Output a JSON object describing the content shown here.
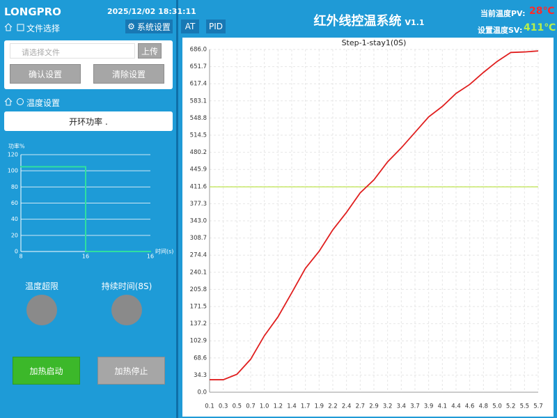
{
  "header": {
    "brand": "LONGPRO",
    "datetime": "2025/12/02 18:31:11"
  },
  "left": {
    "file_nav": "文件选择",
    "settings_btn": "系统设置",
    "file_placeholder": "请选择文件",
    "upload_btn": "上传",
    "confirm_btn": "确认设置",
    "clear_btn": "清除设置",
    "temp_nav": "温度设置",
    "mode": "开环功率 .",
    "indicators": [
      {
        "label": "温度超限"
      },
      {
        "label": "持续时间(8S)"
      }
    ],
    "start_btn": "加热启动",
    "stop_btn": "加热停止"
  },
  "right": {
    "at_btn": "AT",
    "pid_btn": "PID",
    "title": "红外线控温系统",
    "version": "V1.1",
    "pv_label": "当前温度PV:",
    "pv_value": "28℃",
    "sv_label": "设置温度SV:",
    "sv_value": "411℃"
  },
  "chart_data": [
    {
      "type": "step",
      "y_label": "功率%",
      "x_label": "时间(s)",
      "categories": [
        "8",
        "16",
        "16"
      ],
      "values": [
        105,
        0,
        0
      ],
      "color": "#2fe0a0",
      "ylim": [
        0,
        120
      ],
      "yticks": [
        0,
        20,
        40,
        60,
        80,
        100,
        120
      ],
      "grid": true
    },
    {
      "type": "line",
      "title": "Step-1-stay1(0S)",
      "categories": [
        "0.1",
        "0.3",
        "0.5",
        "0.7",
        "1.0",
        "1.2",
        "1.4",
        "1.7",
        "1.9",
        "2.2",
        "2.4",
        "2.7",
        "2.9",
        "3.2",
        "3.4",
        "3.7",
        "3.9",
        "4.1",
        "4.4",
        "4.6",
        "4.8",
        "5.0",
        "5.2",
        "5.5",
        "5.7"
      ],
      "values": [
        25,
        25,
        36,
        66,
        113,
        151,
        199,
        248,
        282,
        325,
        360,
        399,
        425,
        461,
        489,
        520,
        551,
        572,
        598,
        616,
        640,
        662,
        680,
        681,
        683
      ],
      "color": "#e01f1f",
      "ylim": [
        0,
        686
      ],
      "yticks": [
        {
          "value": 0,
          "label": "0.0"
        },
        34.3,
        68.6,
        102.9,
        137.2,
        171.5,
        205.8,
        240.1,
        274.4,
        308.7,
        {
          "value": 343,
          "label": "343.0"
        },
        377.3,
        411.6,
        445.9,
        480.2,
        514.5,
        548.8,
        583.1,
        617.4,
        651.7,
        {
          "value": 686,
          "label": "686.0"
        }
      ],
      "hline": 411,
      "hline_color": "#c8e86a",
      "grid": true
    }
  ]
}
